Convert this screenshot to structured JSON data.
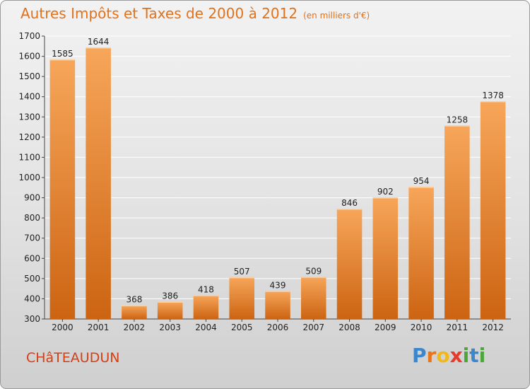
{
  "title": "Autres Impôts et Taxes de 2000 à 2012",
  "subtitle": "(en milliers d'€)",
  "commune": "CHâTEAUDUN",
  "brand": {
    "letters": [
      "P",
      "r",
      "o",
      "x",
      "i",
      "t",
      "i"
    ],
    "colors": [
      "#3b86cc",
      "#e8741c",
      "#f2b818",
      "#e63a2a",
      "#4aa83a",
      "#3b86cc",
      "#4aa83a"
    ]
  },
  "colors": {
    "bar_light": "#f7a65a",
    "bar_dark": "#cc6412",
    "title": "#e2711a",
    "commune": "#d63e14"
  },
  "chart_data": {
    "type": "bar",
    "categories": [
      "2000",
      "2001",
      "2002",
      "2003",
      "2004",
      "2005",
      "2006",
      "2007",
      "2008",
      "2009",
      "2010",
      "2011",
      "2012"
    ],
    "values": [
      1585,
      1644,
      368,
      386,
      418,
      507,
      439,
      509,
      846,
      902,
      954,
      1258,
      1378
    ],
    "y_ticks": [
      300,
      400,
      500,
      600,
      700,
      800,
      900,
      1000,
      1100,
      1200,
      1300,
      1400,
      1500,
      1600,
      1700
    ],
    "ylim": [
      300,
      1700
    ],
    "grid": true,
    "title": "Autres Impôts et Taxes de 2000 à 2012",
    "xlabel": "",
    "ylabel": ""
  }
}
